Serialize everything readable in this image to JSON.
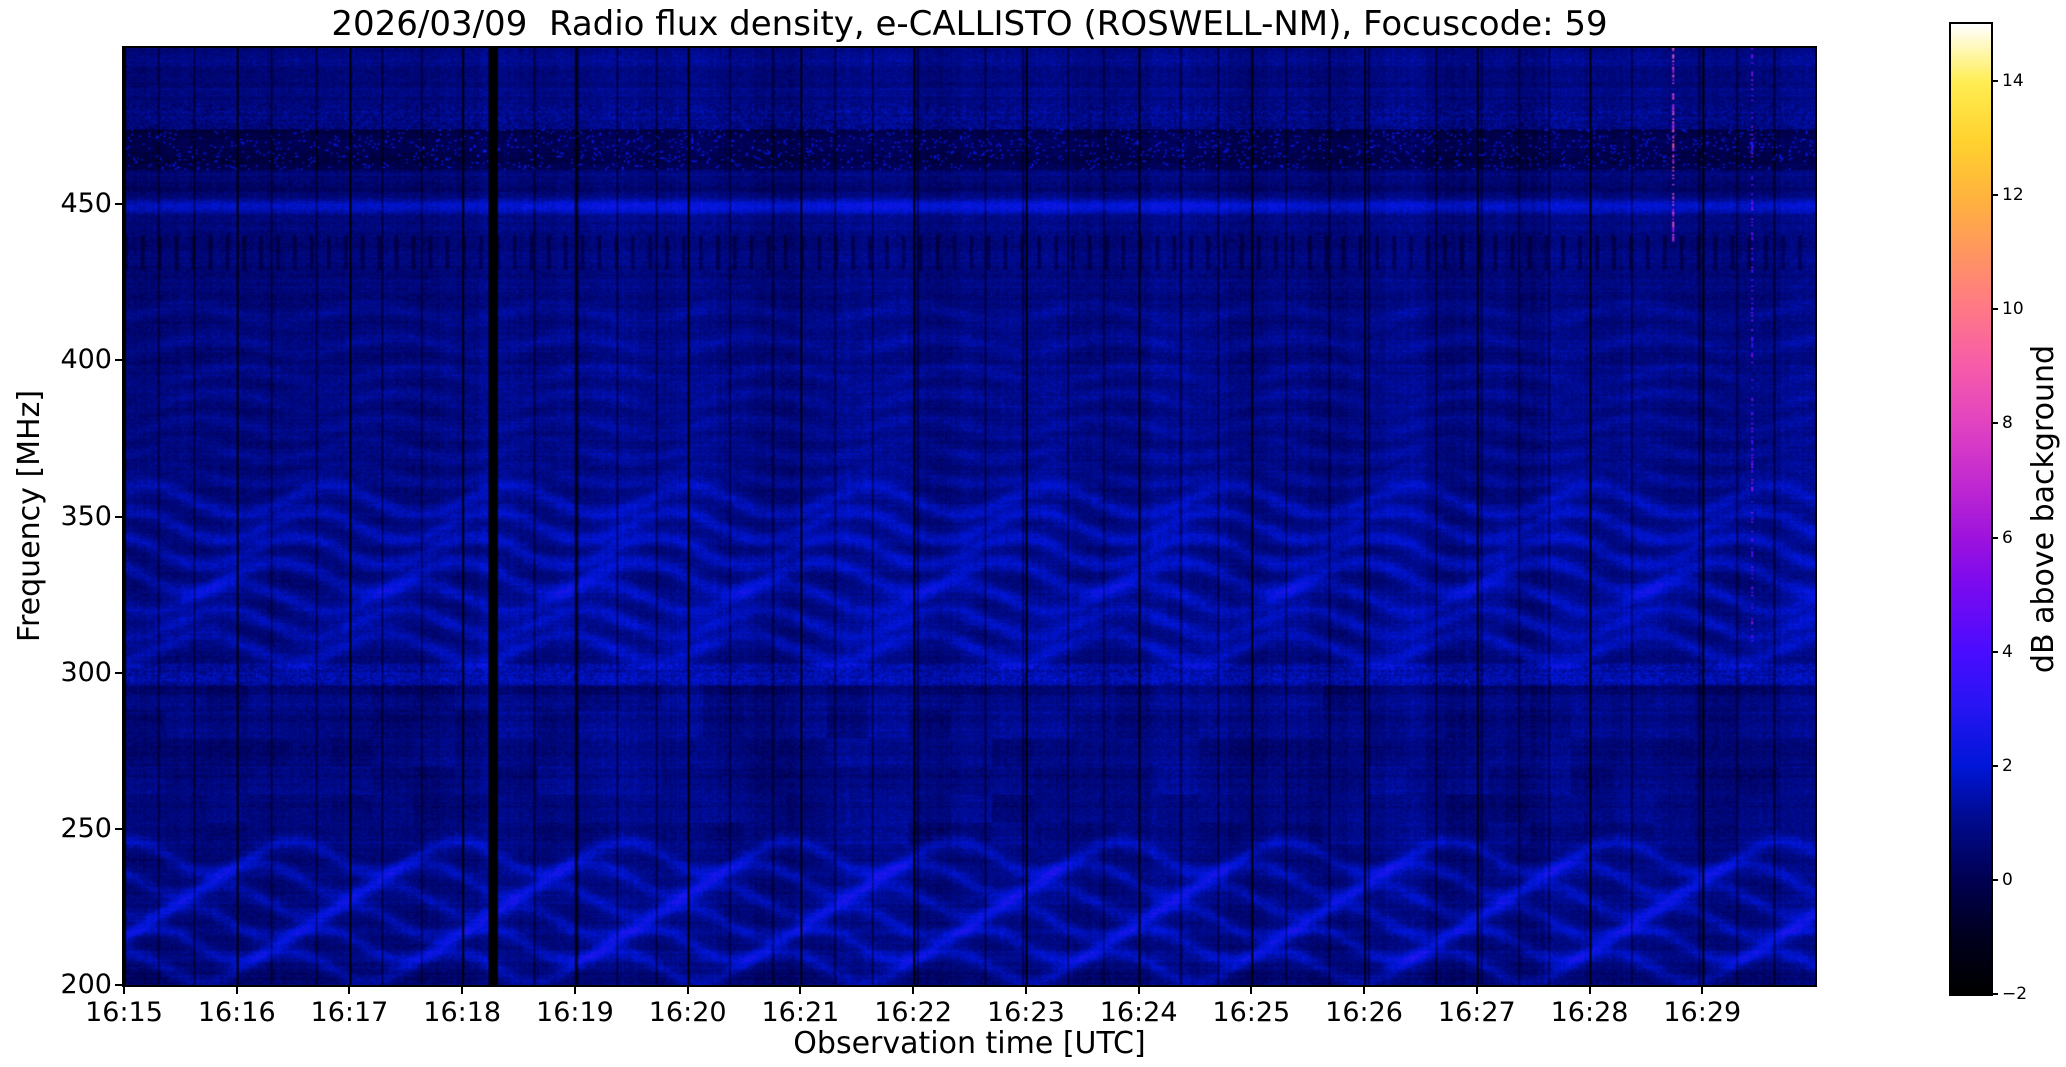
{
  "figure": {
    "title": "2026/03/09  Radio flux density, e-CALLISTO (ROSWELL-NM), Focuscode: 59",
    "xlabel": "Observation time [UTC]",
    "ylabel": "Frequency [MHz]",
    "colorbar_label": "dB above background",
    "background_color": "#ffffff"
  },
  "chart_data": {
    "type": "heatmap",
    "description": "Solar radio spectrogram (dynamic spectrum), mostly dark blue background noise with wavy horizontal interference bands, black vertical calibration gaps each minute, a bright band near 450 MHz, a dark band near 468 MHz and pink RFI streaks near 16:28:44 and 16:29:26",
    "x_axis": {
      "label": "Observation time [UTC]",
      "start": "16:15:00",
      "end": "16:30:00",
      "duration_s": 900,
      "ticks": [
        "16:15",
        "16:16",
        "16:17",
        "16:18",
        "16:19",
        "16:20",
        "16:21",
        "16:22",
        "16:23",
        "16:24",
        "16:25",
        "16:26",
        "16:27",
        "16:28",
        "16:29"
      ]
    },
    "y_axis": {
      "label": "Frequency [MHz]",
      "range": [
        200,
        500
      ],
      "ticks": [
        200,
        250,
        300,
        350,
        400,
        450
      ]
    },
    "colorbar": {
      "label": "dB above background",
      "range": [
        -2,
        15
      ],
      "ticks": [
        {
          "value": 14,
          "label": "14"
        },
        {
          "value": 12,
          "label": "12"
        },
        {
          "value": 10,
          "label": "10"
        },
        {
          "value": 8,
          "label": "8"
        },
        {
          "value": 6,
          "label": "6"
        },
        {
          "value": 4,
          "label": "4"
        },
        {
          "value": 2,
          "label": "2"
        },
        {
          "value": 0,
          "label": "0"
        },
        {
          "value": -2,
          "label": "−2"
        }
      ],
      "colormap": "gnuplot2-like (black-blue-violet-magenta-orange-yellow-white)",
      "stops": [
        {
          "t": 0.0,
          "color": "#000000"
        },
        {
          "t": 0.055,
          "color": "#00001c"
        },
        {
          "t": 0.118,
          "color": "#000052"
        },
        {
          "t": 0.18,
          "color": "#000b8f"
        },
        {
          "t": 0.235,
          "color": "#0016d8"
        },
        {
          "t": 0.3,
          "color": "#2a14f5"
        },
        {
          "t": 0.353,
          "color": "#4a0cff"
        },
        {
          "t": 0.42,
          "color": "#7a0af0"
        },
        {
          "t": 0.47,
          "color": "#9d13dd"
        },
        {
          "t": 0.53,
          "color": "#c32bd0"
        },
        {
          "t": 0.59,
          "color": "#e244c0"
        },
        {
          "t": 0.65,
          "color": "#f75da8"
        },
        {
          "t": 0.71,
          "color": "#ff7a84"
        },
        {
          "t": 0.765,
          "color": "#ff9660"
        },
        {
          "t": 0.82,
          "color": "#ffb23e"
        },
        {
          "t": 0.88,
          "color": "#ffd22e"
        },
        {
          "t": 0.94,
          "color": "#ffed52"
        },
        {
          "t": 1.0,
          "color": "#ffffff"
        }
      ]
    },
    "value_summary": {
      "typical_background_db": [
        -0.5,
        2.5
      ],
      "gap_value_db": -2
    },
    "features": [
      {
        "id": "wavy_emission_bands_low",
        "centers": [
          206,
          213,
          220,
          227,
          234,
          241
        ],
        "amp": 5,
        "period": 88,
        "width": 1.7,
        "gain": 0.85
      },
      {
        "id": "wavy_emission_bands_mid",
        "centers": [
          308,
          316,
          324,
          331,
          339,
          347,
          355
        ],
        "amp": 4.5,
        "period": 96,
        "width": 1.9,
        "gain": 0.95
      },
      {
        "id": "wavy_emission_bands_upper",
        "centers": [
          363,
          371,
          379,
          387,
          395,
          405,
          415
        ],
        "amp": 3,
        "period": 96,
        "width": 1.6,
        "gain": 0.4
      },
      {
        "id": "bright_speckle_band_300",
        "fmin": 296,
        "fmax": 303,
        "gain": 0.85
      },
      {
        "id": "blocky_mottled_region",
        "fmin": 245,
        "fmax": 296,
        "block_w_s": 22,
        "block_h_mhz": 9,
        "gain": 0.5
      },
      {
        "id": "bright_line_449",
        "fmin": 446,
        "fmax": 452,
        "center": 449,
        "gain": 1.15
      },
      {
        "id": "dark_band_468",
        "fmin": 461,
        "fmax": 474,
        "gain": -0.8
      },
      {
        "id": "speckle_band_478",
        "fmin": 474,
        "fmax": 482,
        "gain": 0.45
      },
      {
        "id": "periodic_dark_dashes",
        "fmin": 429,
        "fmax": 440,
        "interval_s": 9,
        "gain": -0.75
      },
      {
        "id": "minute_calibration_lines",
        "interval_s": 60,
        "value": -2
      },
      {
        "id": "wide_data_gap",
        "time_s": 196,
        "width_s": 4,
        "value": -2
      },
      {
        "id": "narrow_dark_columns",
        "times_s": [
          18,
          37,
          78,
          102,
          137,
          158,
          218,
          241,
          262,
          283,
          322,
          345,
          378,
          398,
          422,
          458,
          478,
          502,
          521,
          562,
          582,
          618,
          641,
          662,
          698,
          722,
          742,
          758,
          802,
          838,
          858,
          878
        ],
        "gain": -1.1
      },
      {
        "id": "rfi_streaks",
        "streaks": [
          {
            "time_s": 824,
            "fmin": 438,
            "fmax": 500,
            "level_db": 7
          },
          {
            "time_s": 866,
            "fmin": 310,
            "fmax": 500,
            "level_db": 4.5
          }
        ]
      }
    ]
  }
}
